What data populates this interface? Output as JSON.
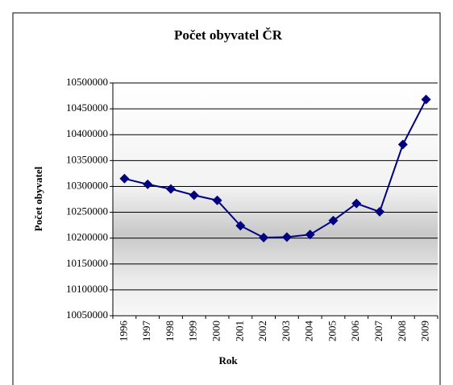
{
  "chart_data": {
    "type": "line",
    "title": "Počet obyvatel ČR",
    "x_label": "Rok",
    "y_label": "Počet obyvatel",
    "categories": [
      "1996",
      "1997",
      "1998",
      "1999",
      "2000",
      "2001",
      "2002",
      "2003",
      "2004",
      "2005",
      "2006",
      "2007",
      "2008",
      "2009"
    ],
    "series": [
      {
        "name": "Počet obyvatel",
        "color": "#000080",
        "values": [
          10315000,
          10304000,
          10295000,
          10283000,
          10273000,
          10224000,
          10201000,
          10202000,
          10207000,
          10234000,
          10267000,
          10251000,
          10381000,
          10468000
        ]
      }
    ],
    "ylim": [
      10050000,
      10500000
    ],
    "yticks": [
      10050000,
      10100000,
      10150000,
      10200000,
      10250000,
      10300000,
      10350000,
      10400000,
      10450000,
      10500000
    ],
    "grid": true
  }
}
